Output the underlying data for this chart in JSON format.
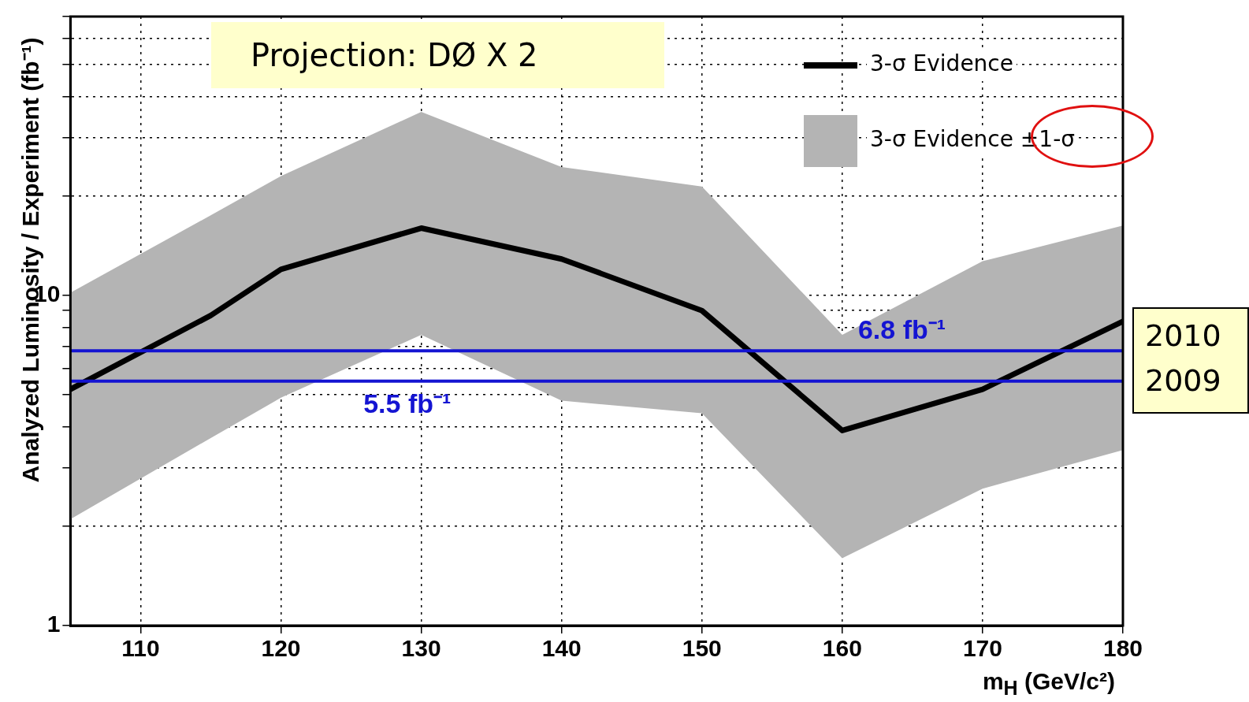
{
  "chart_data": {
    "type": "line",
    "xlabel": "m$_{H}$ (GeV/c²)",
    "ylabel": "Analyzed Luminosity / Experiment (fb⁻¹)",
    "x": [
      105,
      115,
      120,
      130,
      140,
      150,
      160,
      170,
      180
    ],
    "series": [
      {
        "name": "3-σ Evidence",
        "color": "#000000",
        "values": [
          5.2,
          8.7,
          12.0,
          16.0,
          12.9,
          9.0,
          3.9,
          5.2,
          8.35
        ],
        "lower": [
          2.1,
          3.7,
          4.9,
          7.6,
          4.8,
          4.4,
          1.6,
          2.6,
          3.4
        ],
        "upper": [
          10.2,
          17.5,
          23,
          36,
          24.5,
          21.4,
          7.6,
          12.7,
          16.3
        ]
      }
    ],
    "xlim": [
      105,
      180
    ],
    "xticks": [
      110,
      120,
      130,
      140,
      150,
      160,
      170,
      180
    ],
    "ylim": [
      1,
      70
    ],
    "log": true,
    "yticks": [
      1,
      {
        "value": 2,
        "label": null
      },
      {
        "value": 3,
        "label": null
      },
      {
        "value": 4,
        "label": null
      },
      {
        "value": 5,
        "label": null
      },
      {
        "value": 6,
        "label": null
      },
      {
        "value": 7,
        "label": null
      },
      {
        "value": 8,
        "label": null
      },
      {
        "value": 9,
        "label": null
      },
      10,
      {
        "value": 20,
        "label": null
      },
      {
        "value": 30,
        "label": null
      },
      {
        "value": 40,
        "label": null
      },
      {
        "value": 50,
        "label": null
      },
      {
        "value": 60,
        "label": null
      },
      {
        "value": 70,
        "label": null
      }
    ],
    "ref_lines": [
      {
        "axis": "y",
        "value": 5.5,
        "label": "5.5 fb⁻¹",
        "color": "#1414d2"
      },
      {
        "axis": "y",
        "value": 6.8,
        "label": "6.8 fb⁻¹",
        "color": "#1414d2"
      }
    ],
    "annotations": [
      "Projection: DØ X 2",
      "2010\n2009",
      "3-σ Evidence ±1-σ"
    ],
    "grid": true,
    "legend": "top right",
    "line_style": "solid",
    "marker": "none"
  }
}
